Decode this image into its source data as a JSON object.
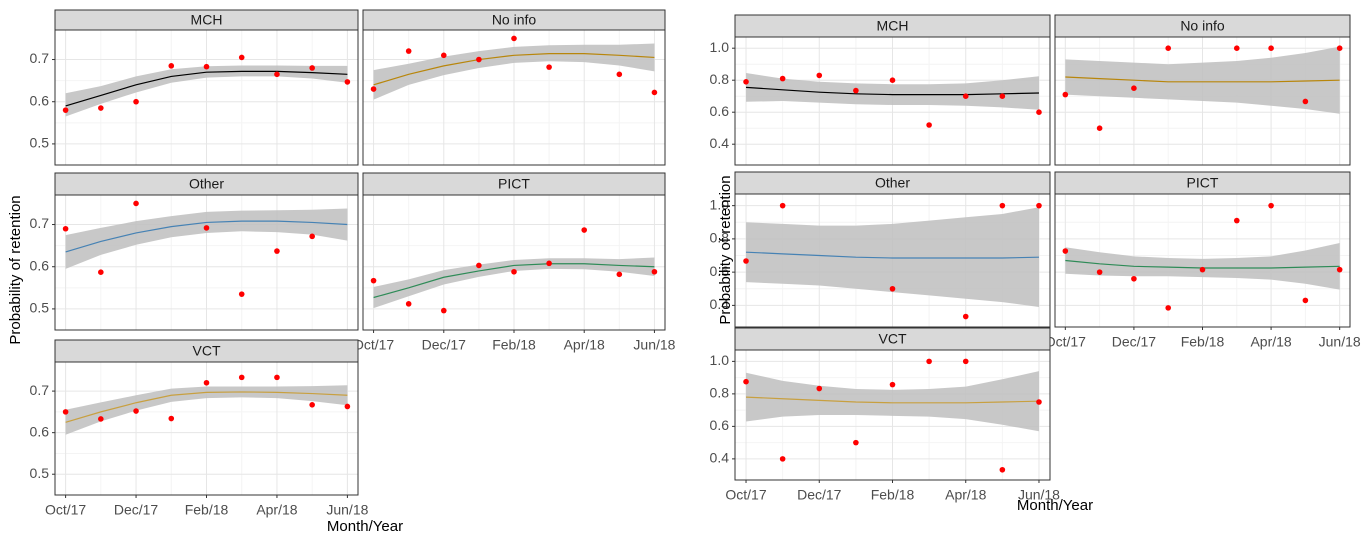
{
  "chart_data": [
    {
      "type": "scatter",
      "y_label": "Probability of retention",
      "x_label": "Month/Year",
      "categories": [
        "Oct/17",
        null,
        "Dec/17",
        null,
        "Feb/18",
        null,
        "Apr/18",
        null,
        "Jun/18"
      ],
      "ylim": [
        0.45,
        0.77
      ],
      "yticks": [
        0.5,
        0.6,
        0.7
      ],
      "grid": true,
      "point_color": "#ff0000",
      "band_color": "#bebebe",
      "panels": [
        {
          "title": "MCH",
          "color": "#000000",
          "values": [
            0.58,
            0.585,
            0.6,
            0.685,
            0.683,
            0.705,
            0.665,
            0.68,
            0.647
          ],
          "fit": [
            0.59,
            0.615,
            0.64,
            0.66,
            0.67,
            0.672,
            0.672,
            0.669,
            0.665
          ],
          "lower": [
            0.565,
            0.595,
            0.622,
            0.645,
            0.657,
            0.66,
            0.66,
            0.655,
            0.645
          ],
          "upper": [
            0.62,
            0.637,
            0.66,
            0.677,
            0.684,
            0.686,
            0.686,
            0.685,
            0.685
          ]
        },
        {
          "title": "No info",
          "color": "#b8860b",
          "values": [
            0.63,
            0.72,
            0.71,
            0.7,
            0.75,
            0.682,
            null,
            0.665,
            0.622
          ],
          "fit": [
            0.64,
            0.665,
            0.685,
            0.7,
            0.71,
            0.714,
            0.714,
            0.71,
            0.705
          ],
          "lower": [
            0.605,
            0.64,
            0.663,
            0.68,
            0.692,
            0.696,
            0.694,
            0.686,
            0.672
          ],
          "upper": [
            0.675,
            0.69,
            0.707,
            0.72,
            0.73,
            0.734,
            0.735,
            0.735,
            0.738
          ]
        },
        {
          "title": "Other",
          "color": "#4682b4",
          "values": [
            0.69,
            0.587,
            0.75,
            null,
            0.692,
            0.535,
            0.637,
            0.672,
            null
          ],
          "fit": [
            0.635,
            0.66,
            0.68,
            0.695,
            0.705,
            0.708,
            0.708,
            0.705,
            0.7
          ],
          "lower": [
            0.595,
            0.628,
            0.652,
            0.67,
            0.68,
            0.684,
            0.682,
            0.676,
            0.662
          ],
          "upper": [
            0.675,
            0.692,
            0.708,
            0.72,
            0.73,
            0.733,
            0.734,
            0.735,
            0.738
          ]
        },
        {
          "title": "PICT",
          "color": "#2e8b57",
          "values": [
            0.567,
            0.512,
            0.496,
            0.603,
            0.588,
            0.608,
            0.687,
            0.582,
            0.588
          ],
          "fit": [
            0.527,
            0.55,
            0.575,
            0.59,
            0.603,
            0.607,
            0.607,
            0.603,
            0.6
          ],
          "lower": [
            0.502,
            0.53,
            0.558,
            0.576,
            0.59,
            0.595,
            0.594,
            0.588,
            0.578
          ],
          "upper": [
            0.552,
            0.57,
            0.592,
            0.605,
            0.616,
            0.62,
            0.62,
            0.618,
            0.622
          ]
        },
        {
          "title": "VCT",
          "color": "#c8a040",
          "values": [
            0.65,
            0.633,
            0.652,
            0.634,
            0.72,
            0.733,
            0.733,
            0.667,
            0.663
          ],
          "fit": [
            0.625,
            0.65,
            0.672,
            0.69,
            0.697,
            0.698,
            0.697,
            0.694,
            0.69
          ],
          "lower": [
            0.595,
            0.627,
            0.653,
            0.674,
            0.683,
            0.685,
            0.683,
            0.676,
            0.666
          ],
          "upper": [
            0.655,
            0.673,
            0.69,
            0.706,
            0.711,
            0.711,
            0.711,
            0.712,
            0.714
          ]
        }
      ]
    },
    {
      "type": "scatter",
      "y_label": "Probability of retention",
      "x_label": "Month/Year",
      "categories": [
        "Oct/17",
        null,
        "Dec/17",
        null,
        "Feb/18",
        null,
        "Apr/18",
        null,
        "Jun/18"
      ],
      "ylim": [
        0.27,
        1.07
      ],
      "yticks": [
        0.4,
        0.6,
        0.8,
        {
          "value": 1,
          "label": "1.0"
        }
      ],
      "grid": true,
      "point_color": "#ff0000",
      "band_color": "#bebebe",
      "panels": [
        {
          "title": "MCH",
          "color": "#000000",
          "values": [
            0.79,
            0.81,
            0.83,
            0.735,
            0.8,
            0.52,
            0.7,
            0.7,
            0.6
          ],
          "fit": [
            0.755,
            0.74,
            0.725,
            0.715,
            0.71,
            0.71,
            0.71,
            0.715,
            0.72
          ],
          "lower": [
            0.665,
            0.67,
            0.66,
            0.65,
            0.645,
            0.645,
            0.64,
            0.63,
            0.615
          ],
          "upper": [
            0.845,
            0.81,
            0.79,
            0.78,
            0.775,
            0.775,
            0.78,
            0.8,
            0.825
          ]
        },
        {
          "title": "No info",
          "color": "#b8860b",
          "values": [
            0.71,
            0.5,
            0.75,
            1.0,
            null,
            1.0,
            1.0,
            0.667,
            1.0
          ],
          "fit": [
            0.82,
            0.81,
            0.8,
            0.79,
            0.79,
            0.79,
            0.79,
            0.795,
            0.8
          ],
          "lower": [
            0.71,
            0.7,
            0.69,
            0.68,
            0.67,
            0.66,
            0.64,
            0.62,
            0.59
          ],
          "upper": [
            0.93,
            0.92,
            0.91,
            0.9,
            0.91,
            0.92,
            0.94,
            0.97,
            1.01
          ]
        },
        {
          "title": "Other",
          "color": "#4682b4",
          "values": [
            0.667,
            1.0,
            null,
            null,
            0.5,
            null,
            0.333,
            1.0,
            1.0
          ],
          "fit": [
            0.72,
            0.71,
            0.7,
            0.69,
            0.685,
            0.685,
            0.685,
            0.685,
            0.69
          ],
          "lower": [
            0.54,
            0.53,
            0.52,
            0.5,
            0.48,
            0.46,
            0.44,
            0.42,
            0.39
          ],
          "upper": [
            0.9,
            0.89,
            0.88,
            0.88,
            0.89,
            0.91,
            0.93,
            0.95,
            0.99
          ]
        },
        {
          "title": "PICT",
          "color": "#2e8b57",
          "values": [
            0.727,
            0.6,
            0.56,
            0.385,
            0.615,
            0.91,
            1.0,
            0.43,
            0.615
          ],
          "fit": [
            0.67,
            0.65,
            0.635,
            0.63,
            0.625,
            0.625,
            0.625,
            0.63,
            0.635
          ],
          "lower": [
            0.59,
            0.58,
            0.575,
            0.575,
            0.57,
            0.565,
            0.555,
            0.53,
            0.495
          ],
          "upper": [
            0.75,
            0.72,
            0.695,
            0.685,
            0.68,
            0.685,
            0.695,
            0.73,
            0.775
          ]
        },
        {
          "title": "VCT",
          "color": "#c8a040",
          "values": [
            0.875,
            0.4,
            0.833,
            0.5,
            0.857,
            1.0,
            1.0,
            0.333,
            0.75
          ],
          "fit": [
            0.78,
            0.77,
            0.76,
            0.75,
            0.745,
            0.745,
            0.745,
            0.75,
            0.755
          ],
          "lower": [
            0.63,
            0.66,
            0.67,
            0.67,
            0.665,
            0.66,
            0.645,
            0.61,
            0.57
          ],
          "upper": [
            0.93,
            0.88,
            0.85,
            0.83,
            0.825,
            0.83,
            0.845,
            0.89,
            0.94
          ]
        }
      ]
    }
  ]
}
